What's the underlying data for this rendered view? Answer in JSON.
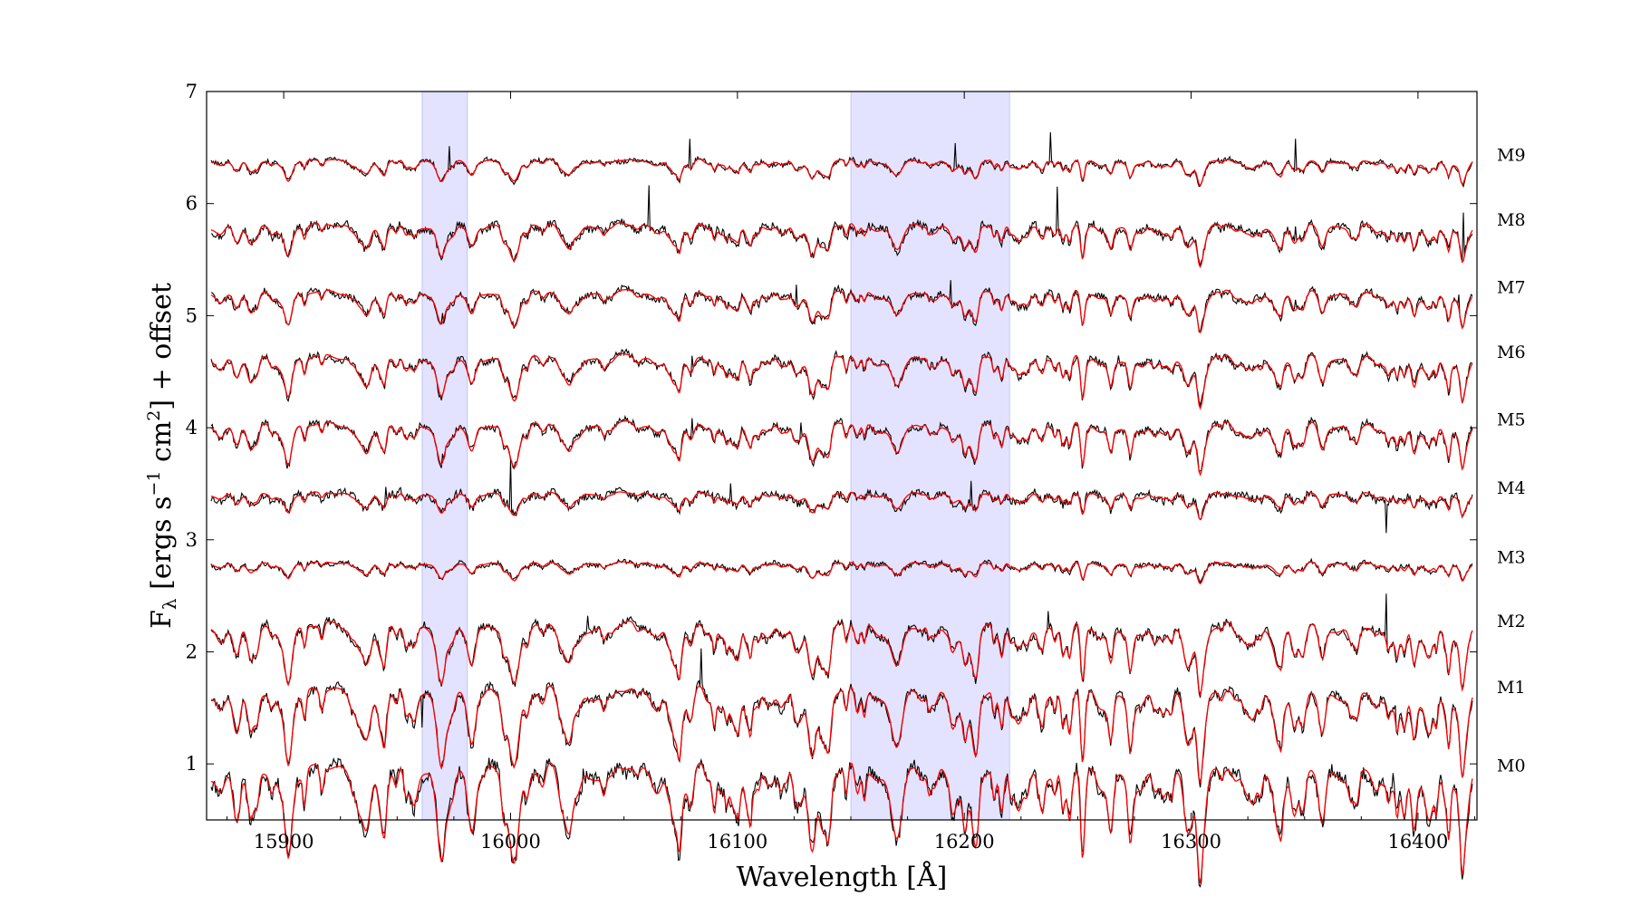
{
  "chart_data": {
    "type": "line",
    "title": "",
    "xlabel": "Wavelength [Å]",
    "ylabel": "F",
    "ylabel_sub": "λ",
    "ylabel_rest": " [ergs s",
    "ylabel_sup1": "−1",
    "ylabel_rest2": " cm",
    "ylabel_sup2": "2",
    "ylabel_rest3": "] + offset",
    "xlim": [
      15866,
      16426
    ],
    "ylim": [
      0.5,
      7.0
    ],
    "xticks": [
      15900,
      16000,
      16100,
      16200,
      16300,
      16400
    ],
    "xtick_labels": [
      "15900",
      "16000",
      "16100",
      "16200",
      "16300",
      "16400"
    ],
    "yticks": [
      1,
      2,
      3,
      4,
      5,
      6,
      7
    ],
    "ytick_labels": [
      "1",
      "2",
      "3",
      "4",
      "5",
      "6",
      "7"
    ],
    "grid": false,
    "legend": "none",
    "highlight_bands": [
      {
        "x0": 15961,
        "x1": 15981,
        "color": "#0000ff",
        "opacity": 0.11
      },
      {
        "x0": 16150,
        "x1": 16220,
        "color": "#0000ff",
        "opacity": 0.11
      }
    ],
    "series_colors": {
      "observed": "#000000",
      "model": "#ff0000"
    },
    "spectra": [
      {
        "label": "M0",
        "offset": 0.93,
        "depth": 0.22,
        "noise": 0.06,
        "spikes": [
          [
            16032,
            0.12
          ],
          [
            16389,
            0.1
          ]
        ],
        "seed": 11
      },
      {
        "label": "M1",
        "offset": 1.63,
        "depth": 0.18,
        "noise": 0.04,
        "spikes": [
          [
            15961,
            -0.25
          ],
          [
            16084,
            0.32
          ],
          [
            16390,
            0.12
          ]
        ],
        "seed": 23
      },
      {
        "label": "M2",
        "offset": 2.22,
        "depth": 0.14,
        "noise": 0.035,
        "spikes": [
          [
            16034,
            0.14
          ],
          [
            16237,
            0.12
          ],
          [
            16386,
            0.42
          ]
        ],
        "seed": 37
      },
      {
        "label": "M3",
        "offset": 2.79,
        "depth": 0.04,
        "noise": 0.02,
        "spikes": [],
        "seed": 41
      },
      {
        "label": "M4",
        "offset": 3.41,
        "depth": 0.05,
        "noise": 0.035,
        "spikes": [
          [
            15945,
            0.18
          ],
          [
            16000,
            0.46
          ],
          [
            16097,
            0.18
          ],
          [
            16203,
            0.2
          ],
          [
            16386,
            -0.28
          ]
        ],
        "seed": 53
      },
      {
        "label": "M5",
        "offset": 4.02,
        "depth": 0.1,
        "noise": 0.03,
        "spikes": [
          [
            15970,
            0.12
          ],
          [
            16080,
            0.18
          ],
          [
            16128,
            0.14
          ]
        ],
        "seed": 61
      },
      {
        "label": "M6",
        "offset": 4.62,
        "depth": 0.1,
        "noise": 0.03,
        "spikes": [
          [
            16080,
            0.16
          ],
          [
            16268,
            0.1
          ]
        ],
        "seed": 73
      },
      {
        "label": "M7",
        "offset": 5.2,
        "depth": 0.08,
        "noise": 0.03,
        "spikes": [
          [
            15970,
            0.12
          ],
          [
            16126,
            0.2
          ],
          [
            16194,
            0.22
          ],
          [
            16346,
            0.12
          ],
          [
            16418,
            0.1
          ]
        ],
        "seed": 83
      },
      {
        "label": "M8",
        "offset": 5.8,
        "depth": 0.08,
        "noise": 0.035,
        "spikes": [
          [
            16061,
            0.36
          ],
          [
            16241,
            0.38
          ],
          [
            16346,
            0.12
          ],
          [
            16420,
            0.4
          ]
        ],
        "seed": 97
      },
      {
        "label": "M9",
        "offset": 6.38,
        "depth": 0.05,
        "noise": 0.02,
        "spikes": [
          [
            15973,
            0.22
          ],
          [
            16079,
            0.24
          ],
          [
            16196,
            0.22
          ],
          [
            16238,
            0.26
          ],
          [
            16346,
            0.3
          ]
        ],
        "seed": 101
      }
    ]
  }
}
